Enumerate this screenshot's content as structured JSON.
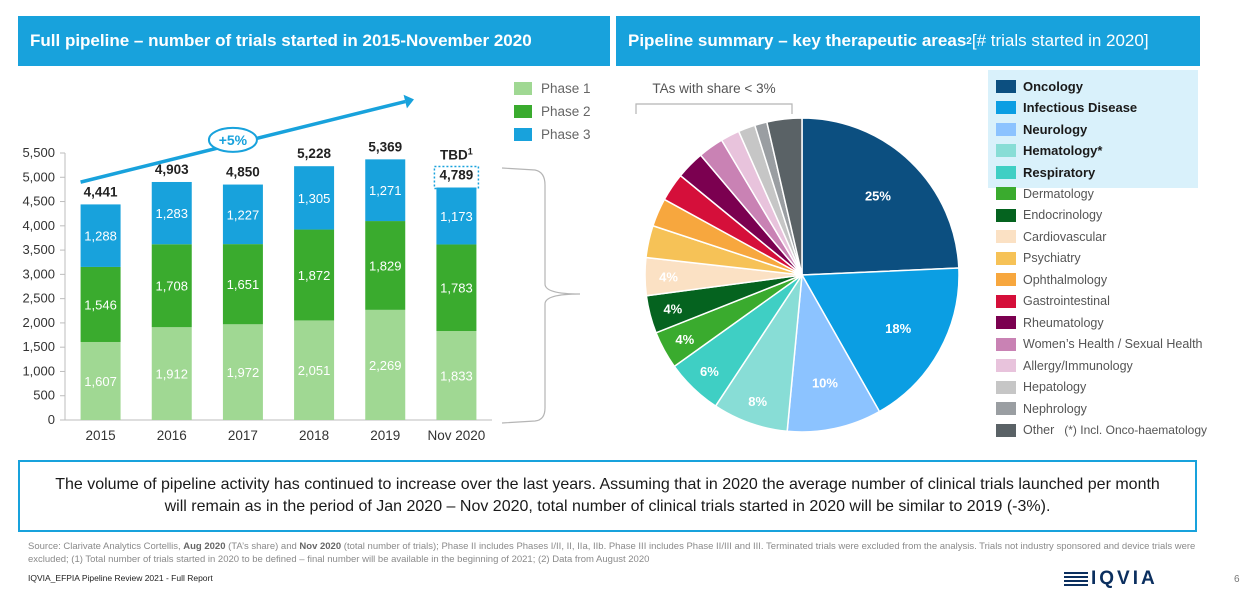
{
  "left_panel": {
    "title": "Full pipeline – number of trials started in 2015-November 2020",
    "growth_label": "+5%",
    "tbd_label": "TBD",
    "tbd_sup": "1"
  },
  "right_panel": {
    "title_main": "Pipeline summary – key therapeutic areas",
    "title_sup": "2",
    "title_suffix": " [# trials started in 2020]",
    "small_ta_label": "TAs with share < 3%",
    "onco_note": "(*) Incl. Onco-haematology"
  },
  "summary": "The volume of pipeline activity has continued to increase over the last years. Assuming that in 2020 the average number of clinical trials launched per month will remain as in the period of Jan 2020 – Nov 2020, total number of clinical trials started in 2020 will be similar to 2019 (-3%).",
  "source": {
    "p1": "Source: Clarivate Analytics Cortellis, ",
    "b1": "Aug 2020",
    "p2": " (TA’s share) and ",
    "b2": "Nov 2020",
    "p3": " (total number of trials); Phase II includes Phases I/II, II, IIa, IIb. Phase III includes Phase II/III and III. Terminated trials were excluded from the analysis. Trials not industry sponsored and device trials were excluded; (1) Total number of trials started in 2020 to be defined – final number will be available in the beginning of 2021; (2) Data from August 2020"
  },
  "footer": {
    "report": "IQVIA_EFPIA Pipeline Review 2021 - Full Report",
    "logo": "IQVIA",
    "page": "6"
  },
  "chart_data": [
    {
      "type": "bar",
      "stacked": true,
      "categories": [
        "2015",
        "2016",
        "2017",
        "2018",
        "2019",
        "Nov 2020"
      ],
      "series": [
        {
          "name": "Phase 1",
          "color": "#a0d893",
          "values": [
            1607,
            1912,
            1972,
            2051,
            2269,
            1833
          ]
        },
        {
          "name": "Phase 2",
          "color": "#3aab2e",
          "values": [
            1546,
            1708,
            1651,
            1872,
            1829,
            1783
          ]
        },
        {
          "name": "Phase 3",
          "color": "#18a2dc",
          "values": [
            1288,
            1283,
            1227,
            1305,
            1271,
            1173
          ]
        }
      ],
      "totals": [
        4441,
        4903,
        4850,
        5228,
        5369,
        4789
      ],
      "value_labels": [
        "1,607",
        "1,912",
        "1,972",
        "2,051",
        "2,269",
        "1,833",
        "1,546",
        "1,708",
        "1,651",
        "1,872",
        "1,829",
        "1,783",
        "1,288",
        "1,283",
        "1,227",
        "1,305",
        "1,271",
        "1,173"
      ],
      "total_labels": [
        "4,441",
        "4,903",
        "4,850",
        "5,228",
        "5,369",
        "4,789"
      ],
      "ylim": [
        0,
        5500
      ],
      "yticks": [
        "0",
        "500",
        "1,000",
        "1,500",
        "2,000",
        "2,500",
        "3,000",
        "3,500",
        "4,000",
        "4,500",
        "5,000",
        "5,500"
      ],
      "legend_position": "top-right"
    },
    {
      "type": "pie",
      "slices": [
        {
          "label": "Oncology",
          "value": 25,
          "color": "#0c4f80",
          "highlight": true,
          "shown": "25%"
        },
        {
          "label": "Infectious Disease",
          "value": 18,
          "color": "#0b9ee3",
          "highlight": true,
          "shown": "18%"
        },
        {
          "label": "Neurology",
          "value": 10,
          "color": "#8cc3ff",
          "highlight": true,
          "shown": "10%"
        },
        {
          "label": "Hematology*",
          "value": 8,
          "color": "#88ddd6",
          "highlight": true,
          "shown": "8%"
        },
        {
          "label": "Respiratory",
          "value": 6,
          "color": "#3fcfc4",
          "highlight": true,
          "shown": "6%"
        },
        {
          "label": "Dermatology",
          "value": 4,
          "color": "#3aab2e",
          "highlight": false,
          "shown": "4%"
        },
        {
          "label": "Endocrinology",
          "value": 4,
          "color": "#05631f",
          "highlight": false,
          "shown": "4%"
        },
        {
          "label": "Cardiovascular",
          "value": 4,
          "color": "#fbe1c4",
          "highlight": false,
          "shown": "4%"
        },
        {
          "label": "Psychiatry",
          "value": 3.4,
          "color": "#f6c257",
          "highlight": false,
          "shown": ""
        },
        {
          "label": "Ophthalmology",
          "value": 3,
          "color": "#f7a73e",
          "highlight": false,
          "shown": ""
        },
        {
          "label": "Gastrointestinal",
          "value": 3,
          "color": "#d50f3a",
          "highlight": false,
          "shown": ""
        },
        {
          "label": "Rheumatology",
          "value": 3,
          "color": "#7b0050",
          "highlight": false,
          "shown": ""
        },
        {
          "label": "Women’s Health / Sexual Health",
          "value": 2.7,
          "color": "#c982b4",
          "highlight": false,
          "shown": ""
        },
        {
          "label": "Allergy/Immunology",
          "value": 2,
          "color": "#e8c3dc",
          "highlight": false,
          "shown": ""
        },
        {
          "label": "Hepatology",
          "value": 1.8,
          "color": "#c6c6c6",
          "highlight": false,
          "shown": ""
        },
        {
          "label": "Nephrology",
          "value": 1.3,
          "color": "#9a9ea2",
          "highlight": false,
          "shown": ""
        },
        {
          "label": "Other",
          "value": 3.7,
          "color": "#5a6266",
          "highlight": false,
          "shown": ""
        }
      ]
    }
  ]
}
